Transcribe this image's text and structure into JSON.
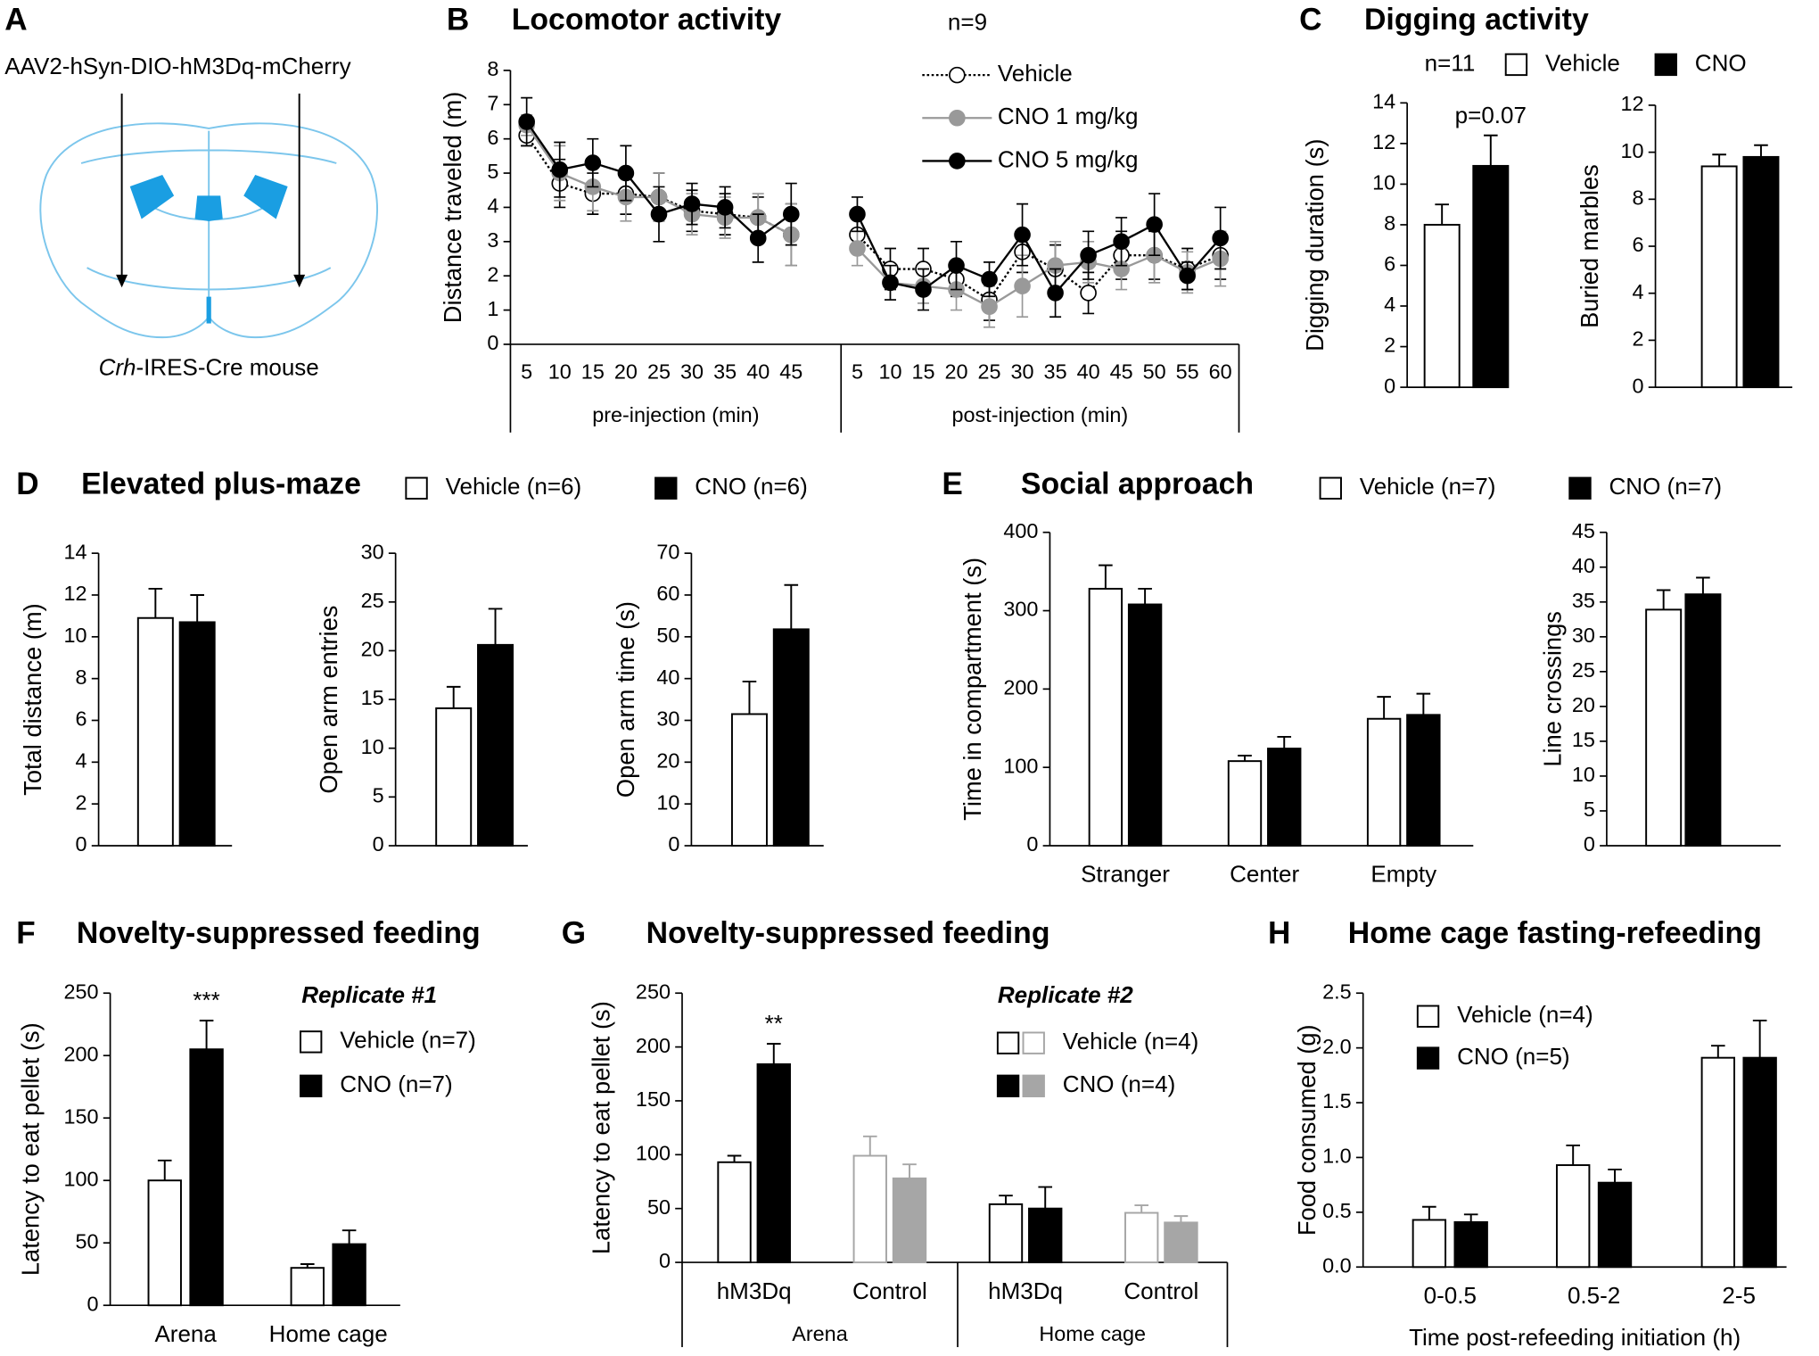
{
  "diagram": {
    "panel": "A",
    "vector": "AAV2-hSyn-DIO-hM3Dq-mCherry",
    "mouse_gene": "Crh",
    "mouse_label": "-IRES-Cre mouse"
  },
  "chart_data": [
    {
      "type": "line",
      "panel": "B",
      "title": "Locomotor activity",
      "note": "n=9",
      "ylabel": "Distance traveled (m)",
      "ylim": [
        0,
        8
      ],
      "yticks": [
        0,
        1,
        2,
        3,
        4,
        5,
        6,
        7,
        8
      ],
      "groups": [
        {
          "label": "pre-injection (min)",
          "categories": [
            5,
            10,
            15,
            20,
            25,
            30,
            35,
            40,
            45
          ]
        },
        {
          "label": "post-injection (min)",
          "categories": [
            5,
            10,
            15,
            20,
            25,
            30,
            35,
            40,
            45,
            50,
            55,
            60
          ]
        }
      ],
      "series": [
        {
          "name": "Vehicle",
          "color": "#000000",
          "marker_fill": "#ffffff",
          "line_style": "dotted",
          "values": [
            [
              6.1,
              4.7,
              4.4,
              4.4,
              4.3,
              3.9,
              3.8,
              3.7,
              3.2
            ],
            [
              3.2,
              2.2,
              2.2,
              1.9,
              1.3,
              2.7,
              2.2,
              1.5,
              2.6,
              2.6,
              2.2,
              2.6
            ]
          ],
          "errors": [
            [
              0.3,
              0.7,
              0.6,
              0.6,
              0.7,
              0.6,
              0.6,
              0.6,
              0.9
            ],
            [
              0.5,
              0.6,
              0.6,
              0.5,
              0.6,
              0.6,
              0.7,
              0.6,
              0.7,
              0.7,
              0.6,
              0.7
            ]
          ]
        },
        {
          "name": "CNO 1 mg/kg",
          "color": "#999999",
          "marker_fill": "#999999",
          "line_style": "solid",
          "values": [
            [
              6.4,
              5.0,
              4.6,
              4.3,
              4.3,
              3.8,
              3.7,
              3.7,
              3.2
            ],
            [
              2.8,
              1.8,
              1.7,
              1.6,
              1.1,
              1.7,
              2.3,
              2.4,
              2.2,
              2.6,
              2.1,
              2.5
            ]
          ],
          "errors": [
            [
              0.3,
              0.8,
              0.7,
              0.7,
              0.7,
              0.6,
              0.6,
              0.7,
              0.9
            ],
            [
              0.5,
              0.5,
              0.5,
              0.6,
              0.6,
              0.9,
              0.7,
              0.6,
              0.6,
              0.8,
              0.6,
              0.8
            ]
          ]
        },
        {
          "name": "CNO 5 mg/kg",
          "color": "#000000",
          "marker_fill": "#000000",
          "line_style": "solid",
          "values": [
            [
              6.5,
              5.1,
              5.3,
              5.0,
              3.8,
              4.1,
              4.0,
              3.1,
              3.8
            ],
            [
              3.8,
              1.8,
              1.6,
              2.3,
              1.9,
              3.2,
              1.5,
              2.6,
              3.0,
              3.5,
              2.0,
              3.1
            ]
          ],
          "errors": [
            [
              0.7,
              0.8,
              0.7,
              0.8,
              0.8,
              0.6,
              0.6,
              0.7,
              0.9
            ],
            [
              0.5,
              0.5,
              0.6,
              0.7,
              0.5,
              0.9,
              0.7,
              0.7,
              0.7,
              0.9,
              0.4,
              0.9
            ]
          ]
        }
      ]
    },
    {
      "type": "bar",
      "panel": "C",
      "title": "Digging activity",
      "note": "n=11",
      "series": [
        {
          "name": "Vehicle",
          "fill": "#ffffff",
          "stroke": "#000000"
        },
        {
          "name": "CNO",
          "fill": "#000000",
          "stroke": "#000000"
        }
      ],
      "plots": [
        {
          "ylabel": "Digging duration (s)",
          "ylim": [
            0,
            14
          ],
          "yticks": [
            0,
            2,
            4,
            6,
            8,
            10,
            12,
            14
          ],
          "annotation": "p=0.07",
          "data": [
            {
              "values": [
                8.0
              ],
              "errors": [
                1.0
              ]
            },
            {
              "values": [
                10.9
              ],
              "errors": [
                1.5
              ]
            }
          ]
        },
        {
          "ylabel": "Buried marbles",
          "ylim": [
            0,
            12
          ],
          "yticks": [
            0,
            2,
            4,
            6,
            8,
            10,
            12
          ],
          "data": [
            {
              "values": [
                9.4
              ],
              "errors": [
                0.5
              ]
            },
            {
              "values": [
                9.8
              ],
              "errors": [
                0.5
              ]
            }
          ]
        }
      ]
    },
    {
      "type": "bar",
      "panel": "D",
      "title": "Elevated plus-maze",
      "series": [
        {
          "name": "Vehicle (n=6)",
          "fill": "#ffffff",
          "stroke": "#000000"
        },
        {
          "name": "CNO (n=6)",
          "fill": "#000000",
          "stroke": "#000000"
        }
      ],
      "plots": [
        {
          "ylabel": "Total distance (m)",
          "ylim": [
            0,
            14
          ],
          "yticks": [
            0,
            2,
            4,
            6,
            8,
            10,
            12,
            14
          ],
          "data": [
            {
              "values": [
                10.9
              ],
              "errors": [
                1.4
              ]
            },
            {
              "values": [
                10.7
              ],
              "errors": [
                1.3
              ]
            }
          ]
        },
        {
          "ylabel": "Open arm entries",
          "ylim": [
            0,
            30
          ],
          "yticks": [
            0,
            5,
            10,
            15,
            20,
            25,
            30
          ],
          "data": [
            {
              "values": [
                14.1
              ],
              "errors": [
                2.2
              ]
            },
            {
              "values": [
                20.6
              ],
              "errors": [
                3.7
              ]
            }
          ]
        },
        {
          "ylabel": "Open arm time (s)",
          "ylim": [
            0,
            70
          ],
          "yticks": [
            0,
            10,
            20,
            30,
            40,
            50,
            60,
            70
          ],
          "data": [
            {
              "values": [
                31.5
              ],
              "errors": [
                7.8
              ]
            },
            {
              "values": [
                51.8
              ],
              "errors": [
                10.6
              ]
            }
          ]
        }
      ]
    },
    {
      "type": "bar",
      "panel": "E",
      "title": "Social approach",
      "series": [
        {
          "name": "Vehicle (n=7)",
          "fill": "#ffffff",
          "stroke": "#000000"
        },
        {
          "name": "CNO (n=7)",
          "fill": "#000000",
          "stroke": "#000000"
        }
      ],
      "plots": [
        {
          "ylabel": "Time in compartment (s)",
          "ylim": [
            0,
            400
          ],
          "yticks": [
            0,
            100,
            200,
            300,
            400
          ],
          "categories": [
            "Stranger",
            "Center",
            "Empty"
          ],
          "data": [
            {
              "values": [
                328,
                108,
                162
              ],
              "errors": [
                30,
                7,
                28
              ]
            },
            {
              "values": [
                308,
                124,
                167
              ],
              "errors": [
                20,
                15,
                27
              ]
            }
          ]
        },
        {
          "ylabel": "Line crossings",
          "ylim": [
            0,
            45
          ],
          "yticks": [
            0,
            5,
            10,
            15,
            20,
            25,
            30,
            35,
            40,
            45
          ],
          "data": [
            {
              "values": [
                33.9
              ],
              "errors": [
                2.8
              ]
            },
            {
              "values": [
                36.1
              ],
              "errors": [
                2.4
              ]
            }
          ]
        }
      ]
    },
    {
      "type": "bar",
      "panel": "F",
      "title": "Novelty-suppressed feeding",
      "subtitle": "Replicate #1",
      "series": [
        {
          "name": "Vehicle (n=7)",
          "fill": "#ffffff",
          "stroke": "#000000"
        },
        {
          "name": "CNO (n=7)",
          "fill": "#000000",
          "stroke": "#000000"
        }
      ],
      "plots": [
        {
          "ylabel": "Latency to eat pellet (s)",
          "ylim": [
            0,
            250
          ],
          "yticks": [
            0,
            50,
            100,
            150,
            200,
            250
          ],
          "annotation": "***",
          "categories": [
            "Arena",
            "Home cage"
          ],
          "data": [
            {
              "values": [
                100,
                30
              ],
              "errors": [
                16,
                3
              ]
            },
            {
              "values": [
                205,
                49
              ],
              "errors": [
                23,
                11
              ]
            }
          ]
        }
      ]
    },
    {
      "type": "bar",
      "panel": "G",
      "title": "Novelty-suppressed feeding",
      "subtitle": "Replicate #2",
      "series": [
        {
          "name": "Vehicle (n=4)",
          "fill": "#ffffff",
          "stroke": [
            "#000000",
            "#a6a6a6",
            "#000000",
            "#a6a6a6"
          ]
        },
        {
          "name": "CNO (n=4)",
          "fill": [
            "#000000",
            "#a6a6a6",
            "#000000",
            "#a6a6a6"
          ],
          "stroke": [
            "#000000",
            "#a6a6a6",
            "#000000",
            "#a6a6a6"
          ]
        }
      ],
      "plots": [
        {
          "ylabel": "Latency to eat pellet (s)",
          "ylim": [
            0,
            250
          ],
          "yticks": [
            0,
            50,
            100,
            150,
            200,
            250
          ],
          "annotation": "**",
          "categories": [
            "hM3Dq",
            "Control",
            "hM3Dq",
            "Control"
          ],
          "groups": [
            "Arena",
            "Home cage"
          ],
          "data": [
            {
              "values": [
                93,
                99,
                54,
                46
              ],
              "errors": [
                6,
                18,
                8,
                7
              ]
            },
            {
              "values": [
                184,
                78,
                50,
                37
              ],
              "errors": [
                19,
                13,
                20,
                6
              ]
            }
          ]
        }
      ]
    },
    {
      "type": "bar",
      "panel": "H",
      "title": "Home cage fasting-refeeding",
      "series": [
        {
          "name": "Vehicle (n=4)",
          "fill": "#ffffff",
          "stroke": "#000000"
        },
        {
          "name": "CNO (n=5)",
          "fill": "#000000",
          "stroke": "#000000"
        }
      ],
      "plots": [
        {
          "ylabel": "Food consumed (g)",
          "xlabel": "Time post-refeeding initiation (h)",
          "ylim": [
            0,
            2.5
          ],
          "yticks": [
            {
              "value": 0,
              "label": "0.0"
            },
            0.5,
            {
              "value": 1,
              "label": "1.0"
            },
            1.5,
            {
              "value": 2,
              "label": "2.0"
            },
            2.5
          ],
          "categories": [
            "0-0.5",
            "0.5-2",
            "2-5"
          ],
          "data": [
            {
              "values": [
                0.43,
                0.93,
                1.91
              ],
              "errors": [
                0.12,
                0.18,
                0.11
              ]
            },
            {
              "values": [
                0.41,
                0.77,
                1.91
              ],
              "errors": [
                0.07,
                0.12,
                0.34
              ]
            }
          ]
        }
      ]
    }
  ]
}
